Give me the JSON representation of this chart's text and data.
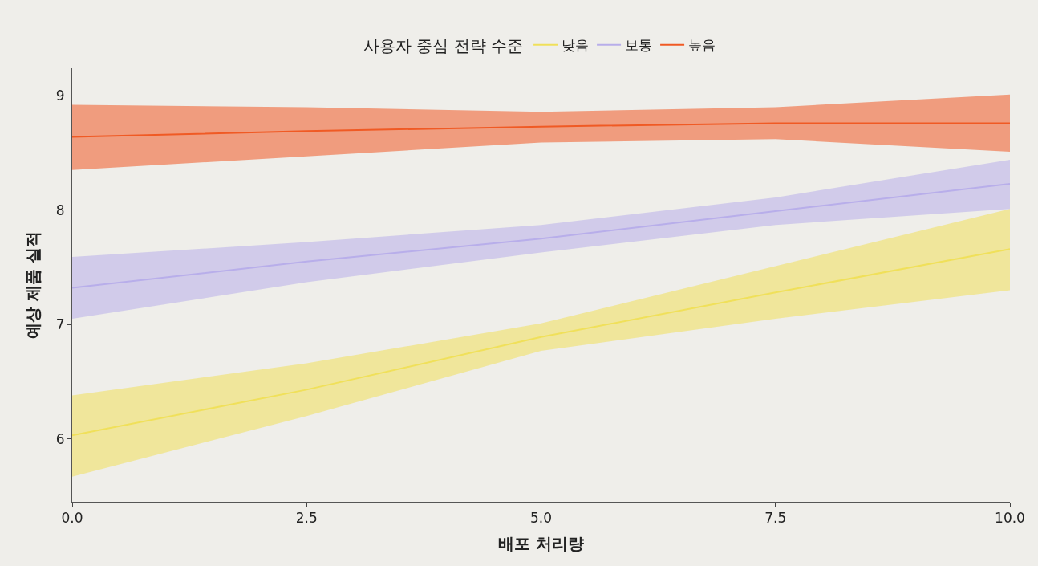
{
  "chart_data": {
    "type": "line",
    "xlabel": "배포 처리량",
    "ylabel": "예상 제품 실적",
    "legend_title": "사용자 중심 전략 수준",
    "legend": "top",
    "grid": false,
    "marker": "none",
    "line_style": "solid",
    "x": [
      0,
      2.5,
      5,
      7.5,
      10
    ],
    "xlim": [
      0,
      10
    ],
    "xticks": [
      {
        "value": 0,
        "label": "0.0"
      },
      {
        "value": 2.5,
        "label": "2.5"
      },
      {
        "value": 5,
        "label": "5.0"
      },
      {
        "value": 7.5,
        "label": "7.5"
      },
      {
        "value": 10,
        "label": "10.0"
      }
    ],
    "ylim": [
      5.45,
      9.24
    ],
    "yticks": [
      6,
      7,
      8,
      9
    ],
    "series": [
      {
        "name": "낮음",
        "color": "#f0e05a",
        "values": [
          6.03,
          6.43,
          6.89,
          7.28,
          7.66
        ],
        "lower": [
          5.67,
          6.2,
          6.77,
          7.05,
          7.3
        ],
        "upper": [
          6.38,
          6.66,
          7.01,
          7.51,
          8.01
        ]
      },
      {
        "name": "보통",
        "color": "#b8aeea",
        "values": [
          7.32,
          7.55,
          7.75,
          7.99,
          8.23
        ],
        "lower": [
          7.05,
          7.37,
          7.63,
          7.87,
          8.01
        ],
        "upper": [
          7.59,
          7.72,
          7.87,
          8.11,
          8.44
        ]
      },
      {
        "name": "높음",
        "color": "#f05a24",
        "values": [
          8.64,
          8.69,
          8.73,
          8.76,
          8.76
        ],
        "lower": [
          8.35,
          8.47,
          8.59,
          8.62,
          8.51
        ],
        "upper": [
          8.92,
          8.9,
          8.86,
          8.9,
          9.01
        ]
      }
    ]
  }
}
